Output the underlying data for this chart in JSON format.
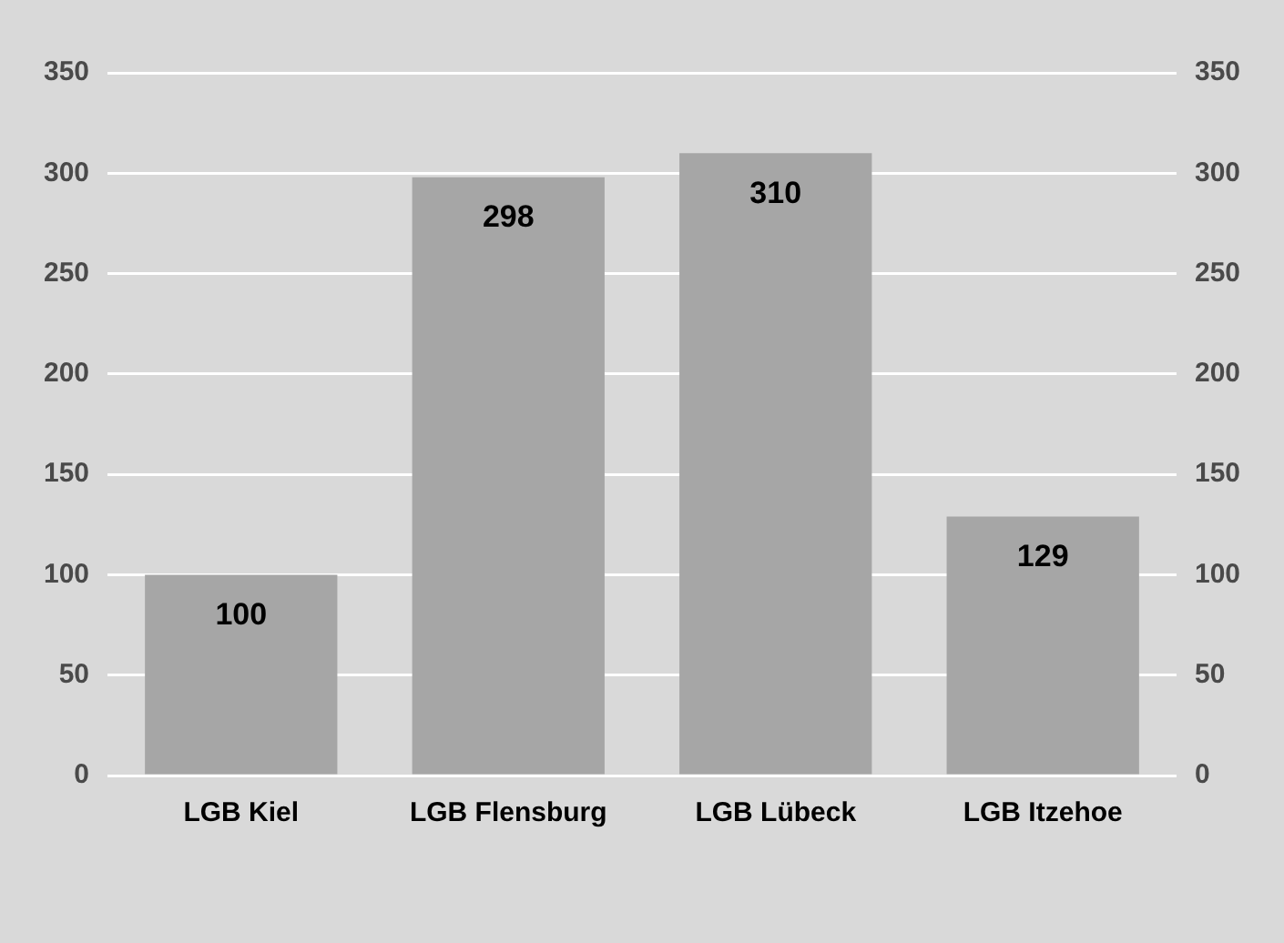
{
  "chart_data": {
    "type": "bar",
    "categories": [
      "LGB Kiel",
      "LGB Flensburg",
      "LGB Lübeck",
      "LGB Itzehoe"
    ],
    "values": [
      100,
      298,
      310,
      129
    ],
    "color": "#a6a6a6",
    "data_labels": true,
    "ylim": [
      0,
      350
    ],
    "yticks": [
      0,
      50,
      100,
      150,
      200,
      250,
      300,
      350
    ],
    "y2lim": [
      0,
      350
    ],
    "y2ticks": [
      0,
      50,
      100,
      150,
      200,
      250,
      300,
      350
    ],
    "grid": "y",
    "legend": false
  }
}
